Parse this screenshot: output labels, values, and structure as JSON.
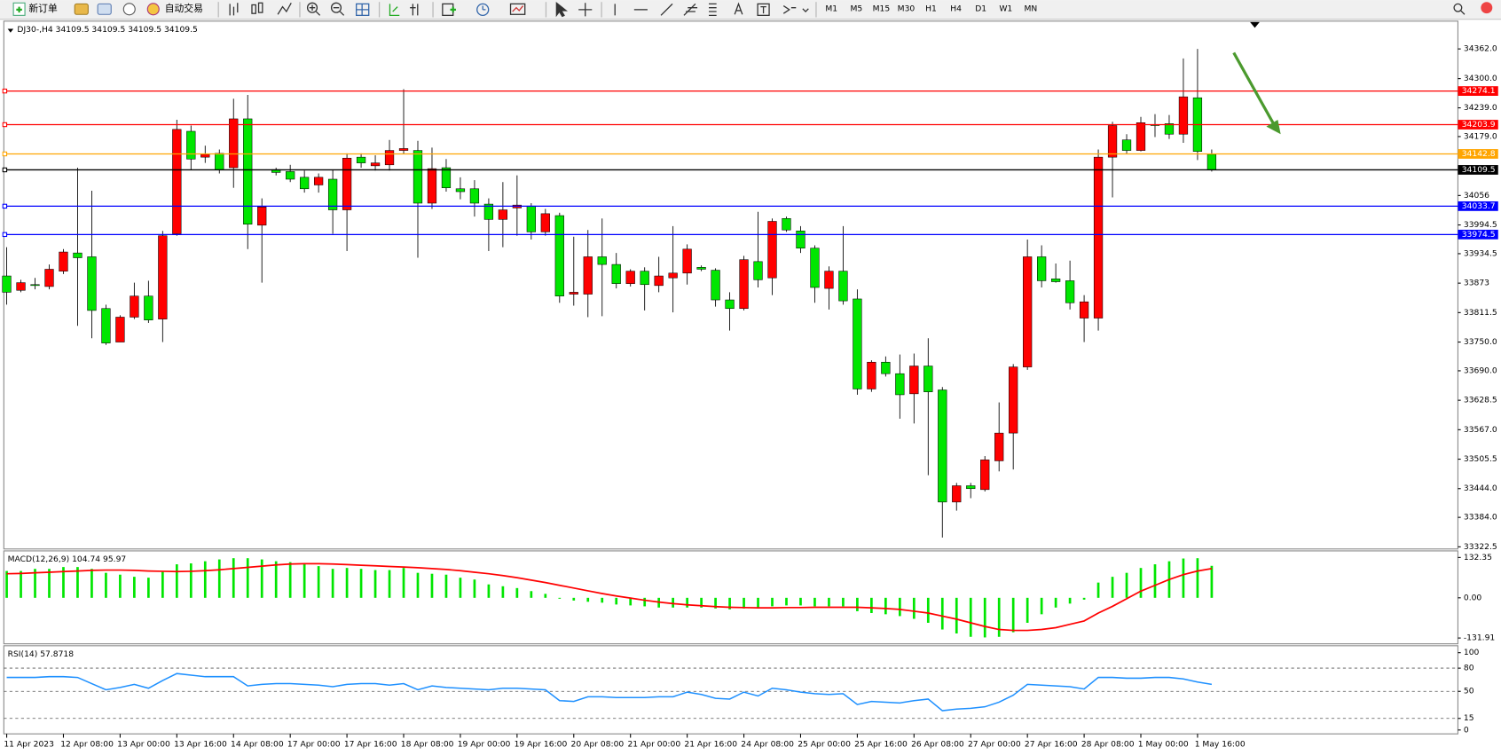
{
  "toolbar": {
    "new_order": "新订单",
    "auto_trading": "自动交易",
    "timeframes": [
      "M1",
      "M5",
      "M15",
      "M30",
      "H1",
      "H4",
      "D1",
      "W1",
      "MN"
    ]
  },
  "chart_data": [
    {
      "type": "candlestick",
      "title": "DJ30-,H4  34109.5 34109.5 34109.5 34109.5",
      "categories": [
        "11 Apr 2023",
        null,
        null,
        null,
        "12 Apr 08:00",
        null,
        null,
        null,
        "13 Apr 00:00",
        null,
        null,
        null,
        "13 Apr 16:00",
        null,
        null,
        null,
        "14 Apr 08:00",
        null,
        null,
        null,
        "17 Apr 00:00",
        null,
        null,
        null,
        "17 Apr 16:00",
        null,
        null,
        null,
        "18 Apr 08:00",
        null,
        null,
        null,
        "19 Apr 00:00",
        null,
        null,
        null,
        "19 Apr 16:00",
        null,
        null,
        null,
        "20 Apr 08:00",
        null,
        null,
        null,
        "21 Apr 00:00",
        null,
        null,
        null,
        "21 Apr 16:00",
        null,
        null,
        null,
        "24 Apr 08:00",
        null,
        null,
        null,
        "25 Apr 00:00",
        null,
        null,
        null,
        "25 Apr 16:00",
        null,
        null,
        null,
        "26 Apr 08:00",
        null,
        null,
        null,
        "27 Apr 00:00",
        null,
        null,
        null,
        "27 Apr 16:00",
        null,
        null,
        null,
        "28 Apr 08:00",
        null,
        null,
        null,
        "1 May 00:00",
        null,
        null,
        null,
        "1 May 16:00",
        null
      ],
      "open": [
        33888,
        33858,
        33870,
        33866,
        33898,
        33936,
        33928,
        33820,
        33750,
        33802,
        33846,
        33798,
        33976,
        34190,
        34136,
        34144,
        34114,
        34216,
        33994,
        34110,
        34106,
        34094,
        34078,
        34090,
        34026,
        34136,
        34118,
        34120,
        34150,
        34150,
        34040,
        34114,
        34070,
        34070,
        34038,
        34006,
        34030,
        34034,
        33980,
        34014,
        33850,
        33850,
        33928,
        33912,
        33872,
        33898,
        33868,
        33884,
        33894,
        33906,
        33900,
        33838,
        33820,
        33918,
        33884,
        34008,
        33982,
        33946,
        33862,
        33898,
        33840,
        33652,
        33708,
        33684,
        33642,
        33700,
        33650,
        33416,
        33450,
        33442,
        33502,
        33560,
        33698,
        33928,
        33882,
        33878,
        33800,
        33800,
        34136,
        34172,
        34150,
        34204,
        34206,
        34184,
        34260,
        34142
      ],
      "high": [
        33948,
        33880,
        33884,
        33912,
        33944,
        34114,
        34066,
        33828,
        33806,
        33874,
        33878,
        33982,
        34214,
        34202,
        34160,
        34152,
        34258,
        34266,
        34050,
        34114,
        34120,
        34108,
        34102,
        34110,
        34144,
        34144,
        34140,
        34172,
        34278,
        34170,
        34156,
        34132,
        34094,
        34088,
        34050,
        34084,
        34098,
        34040,
        34028,
        34020,
        33970,
        33984,
        34008,
        33936,
        33902,
        33906,
        33928,
        33992,
        33954,
        33910,
        33904,
        33854,
        33930,
        34022,
        34008,
        34012,
        33992,
        33952,
        33908,
        33992,
        33860,
        33712,
        33720,
        33724,
        33726,
        33758,
        33656,
        33456,
        33456,
        33512,
        33624,
        33704,
        33964,
        33952,
        33914,
        33920,
        33848,
        34152,
        34210,
        34184,
        34220,
        34226,
        34224,
        34342,
        34362,
        34152
      ],
      "low": [
        33828,
        33854,
        33860,
        33860,
        33892,
        33784,
        33758,
        33744,
        33750,
        33798,
        33790,
        33750,
        33972,
        34110,
        34124,
        34102,
        34072,
        33944,
        33874,
        34098,
        34084,
        34062,
        34062,
        33976,
        33940,
        34114,
        34108,
        34108,
        34142,
        33926,
        34028,
        34064,
        34048,
        34012,
        33940,
        33948,
        33972,
        33964,
        33972,
        33832,
        33826,
        33802,
        33804,
        33862,
        33866,
        33816,
        33854,
        33812,
        33870,
        33898,
        33824,
        33774,
        33816,
        33864,
        33848,
        33980,
        33936,
        33832,
        33818,
        33828,
        33640,
        33646,
        33678,
        33590,
        33580,
        33472,
        33342,
        33398,
        33424,
        33438,
        33480,
        33484,
        33692,
        33864,
        33874,
        33818,
        33750,
        33774,
        34052,
        34144,
        34148,
        34178,
        34174,
        34166,
        34130,
        34106
      ],
      "close": [
        33854,
        33874,
        33868,
        33902,
        33938,
        33926,
        33816,
        33748,
        33802,
        33846,
        33796,
        33972,
        34194,
        34132,
        34142,
        34110,
        34216,
        33996,
        34032,
        34104,
        34090,
        34070,
        34094,
        34026,
        34134,
        34124,
        34124,
        34150,
        34154,
        34040,
        34112,
        34072,
        34064,
        34040,
        34006,
        34026,
        34036,
        33980,
        34018,
        33846,
        33854,
        33928,
        33912,
        33872,
        33898,
        33870,
        33888,
        33894,
        33944,
        33902,
        33838,
        33820,
        33922,
        33880,
        34002,
        33984,
        33946,
        33864,
        33898,
        33836,
        33652,
        33708,
        33684,
        33640,
        33700,
        33646,
        33416,
        33450,
        33444,
        33504,
        33560,
        33698,
        33928,
        33878,
        33876,
        33832,
        33834,
        34136,
        34202,
        34150,
        34208,
        34202,
        34184,
        34262,
        34148,
        34109.5
      ],
      "up_color": "#ff0000",
      "down_color": "#00e600",
      "ylim": [
        33318,
        34420
      ],
      "yticks": [
        {
          "value": 34362,
          "label": "34362.0"
        },
        {
          "value": 34300,
          "label": "34300.0"
        },
        {
          "value": 34239,
          "label": "34239.0"
        },
        {
          "value": 34179,
          "label": "34179.0"
        },
        34056,
        33994.5,
        33934.5,
        33873,
        33811.5,
        {
          "value": 33750,
          "label": "33750.0"
        },
        {
          "value": 33690,
          "label": "33690.0"
        },
        33628.5,
        {
          "value": 33567,
          "label": "33567.0"
        },
        33505.5,
        {
          "value": 33444,
          "label": "33444.0"
        },
        {
          "value": 33384,
          "label": "33384.0"
        },
        33322.5
      ],
      "hlines": [
        {
          "value": 34274.1,
          "color": "#ff0000"
        },
        {
          "value": 34203.9,
          "color": "#ff0000"
        },
        {
          "value": 34142.8,
          "color": "#ffa500"
        },
        {
          "value": 34109.5,
          "color": "#000000"
        },
        {
          "value": 34033.7,
          "color": "#0000ff"
        },
        {
          "value": 33974.5,
          "color": "#0000ff"
        }
      ]
    },
    {
      "type": "macd",
      "title": "MACD(12,26,9) 104.74 95.97",
      "values": [
        88,
        88,
        95,
        95,
        101,
        101,
        95,
        82,
        76,
        69,
        66,
        85,
        110,
        113,
        120,
        126,
        130,
        130,
        126,
        120,
        117,
        110,
        104,
        95,
        98,
        95,
        91,
        91,
        98,
        82,
        79,
        76,
        66,
        60,
        44,
        38,
        32,
        22,
        13,
        -3,
        -9,
        -13,
        -16,
        -22,
        -25,
        -28,
        -32,
        -32,
        -32,
        -32,
        -35,
        -38,
        -35,
        -35,
        -28,
        -25,
        -25,
        -28,
        -28,
        -28,
        -44,
        -50,
        -54,
        -60,
        -69,
        -82,
        -104,
        -117,
        -128,
        -130,
        -128,
        -113,
        -82,
        -54,
        -32,
        -19,
        -6,
        50,
        69,
        82,
        98,
        110,
        120,
        129,
        130,
        105
      ],
      "signal": [
        79,
        80,
        82,
        84,
        86,
        88,
        90,
        91,
        91,
        90,
        88,
        87,
        86,
        87,
        89,
        92,
        96,
        100,
        104,
        108,
        111,
        112,
        112,
        111,
        109,
        107,
        105,
        103,
        101,
        99,
        96,
        93,
        89,
        84,
        79,
        73,
        66,
        58,
        50,
        41,
        32,
        23,
        14,
        6,
        -1,
        -8,
        -14,
        -19,
        -23,
        -26,
        -29,
        -31,
        -32,
        -33,
        -33,
        -32,
        -32,
        -31,
        -31,
        -31,
        -31,
        -33,
        -35,
        -38,
        -44,
        -50,
        -60,
        -70,
        -82,
        -94,
        -104,
        -107,
        -107,
        -104,
        -98,
        -87,
        -76,
        -50,
        -28,
        -3,
        22,
        41,
        60,
        76,
        88,
        96
      ],
      "color": "#00e600",
      "signal_color": "#ff0000",
      "ylim": [
        -151,
        154
      ],
      "yticks": [
        132.35,
        {
          "value": 0,
          "label": "0.00"
        },
        -131.91
      ]
    },
    {
      "type": "rsi",
      "title": "RSI(14) 57.8718",
      "values": [
        68,
        68,
        68,
        69,
        69,
        68,
        60,
        52,
        55,
        59,
        54,
        64,
        73,
        71,
        69,
        69,
        69,
        57,
        59,
        60,
        60,
        59,
        58,
        56,
        59,
        60,
        60,
        58,
        60,
        52,
        57,
        55,
        54,
        53,
        52,
        54,
        54,
        53,
        52,
        38,
        37,
        43,
        43,
        42,
        42,
        42,
        43,
        43,
        49,
        46,
        41,
        40,
        49,
        44,
        54,
        52,
        49,
        47,
        46,
        47,
        33,
        37,
        36,
        35,
        38,
        40,
        25,
        27,
        28,
        30,
        36,
        45,
        59,
        58,
        57,
        56,
        53,
        68,
        68,
        67,
        67,
        68,
        68,
        66,
        62,
        59
      ],
      "color": "#1e90ff",
      "ylim": [
        -5,
        109
      ],
      "yticks": [
        100,
        80,
        50,
        15,
        0
      ],
      "levels": [
        80,
        50,
        15
      ]
    }
  ]
}
